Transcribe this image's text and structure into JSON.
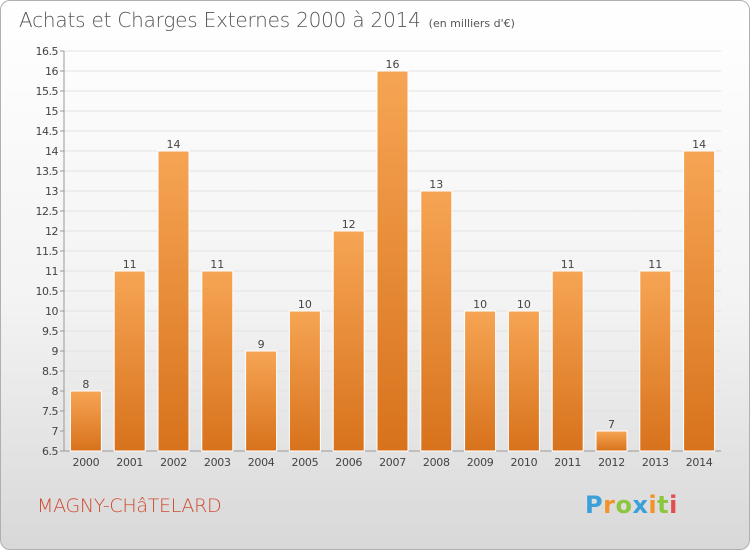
{
  "chart_data": {
    "type": "bar",
    "title": "Achats et Charges Externes 2000 à 2014",
    "unit_note": "(en milliers d'€)",
    "categories": [
      "2000",
      "2001",
      "2002",
      "2003",
      "2004",
      "2005",
      "2006",
      "2007",
      "2008",
      "2009",
      "2010",
      "2011",
      "2012",
      "2013",
      "2014"
    ],
    "values": [
      8,
      11,
      14,
      11,
      9,
      10,
      12,
      16,
      13,
      10,
      10,
      11,
      7,
      11,
      14
    ],
    "data_labels": [
      "8",
      "11",
      "14",
      "11",
      "9",
      "10",
      "12",
      "16",
      "13",
      "10",
      "10",
      "11",
      "7",
      "11",
      "14"
    ],
    "ylim": [
      6.5,
      16.5
    ],
    "yticks": [
      6.5,
      7,
      7.5,
      8,
      8.5,
      9,
      9.5,
      10,
      10.5,
      11,
      11.5,
      12,
      12.5,
      13,
      13.5,
      14,
      14.5,
      15,
      15.5,
      16,
      16.5
    ],
    "xlabel": "",
    "ylabel": "",
    "grid": true,
    "legend": "none",
    "colors": {
      "bar_top": "#f6a554",
      "bar_bottom": "#d8721c",
      "bar_edge": "#ffffff"
    }
  },
  "commune": "MAGNY-CHâTELARD",
  "logo": {
    "letters": [
      "P",
      "r",
      "o",
      "x",
      "i",
      "t",
      "i"
    ],
    "colors": [
      "#3aa0d9",
      "#f0932b",
      "#8cc63f",
      "#3aa0d9",
      "#f0932b",
      "#8cc63f",
      "#e24d4d"
    ]
  }
}
